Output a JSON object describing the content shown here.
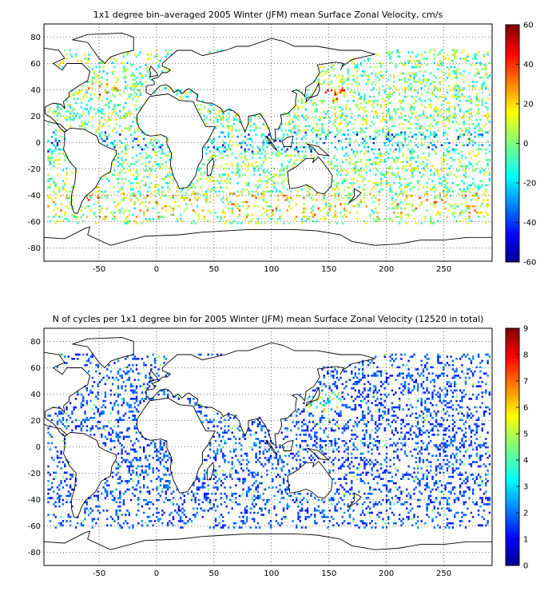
{
  "panels": {
    "velocity": {
      "title": "1x1 degree bin–averaged 2005 Winter (JFM) mean Surface Zonal Velocity, cm/s",
      "x_ticks": [
        "-50",
        "0",
        "50",
        "100",
        "150",
        "200",
        "250"
      ],
      "y_ticks": [
        "80",
        "60",
        "40",
        "20",
        "0",
        "-20",
        "-40",
        "-60",
        "-80"
      ],
      "colorbar_ticks": [
        "60",
        "40",
        "20",
        "0",
        "-20",
        "-40",
        "-60"
      ],
      "colorbar_range": [
        -60,
        60
      ]
    },
    "cycles": {
      "title": "N of cycles per 1x1 degree bin for 2005 Winter (JFM) mean Surface Zonal Velocity (12520 in total)",
      "x_ticks": [
        "-50",
        "0",
        "50",
        "100",
        "150",
        "200",
        "250"
      ],
      "y_ticks": [
        "80",
        "60",
        "40",
        "20",
        "0",
        "-20",
        "-40",
        "-60",
        "-80"
      ],
      "colorbar_ticks": [
        "9",
        "8",
        "7",
        "6",
        "5",
        "4",
        "3",
        "2",
        "1",
        "0"
      ],
      "colorbar_range": [
        0,
        9
      ]
    }
  },
  "map_extent": {
    "lon": [
      -98,
      292
    ],
    "lat": [
      -90,
      90
    ]
  },
  "colormap": "jet"
}
